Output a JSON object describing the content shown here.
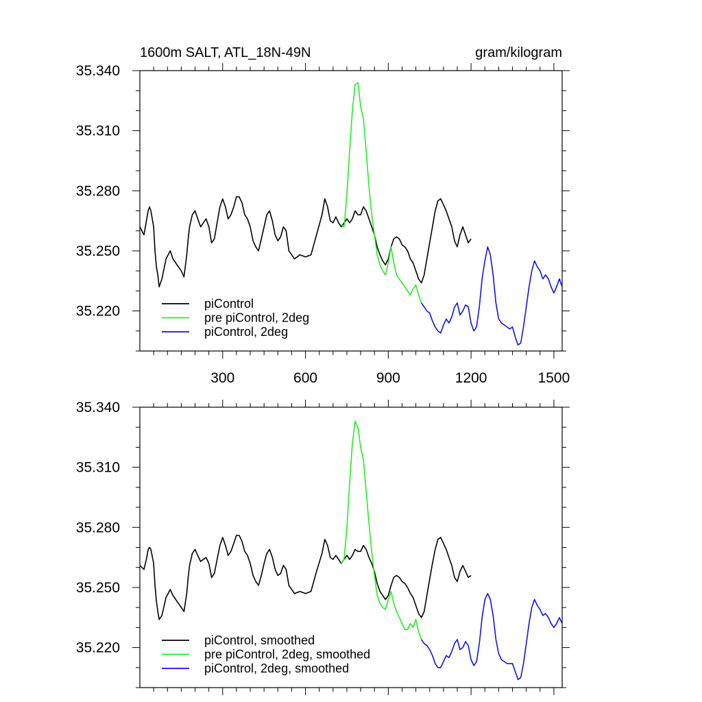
{
  "colors": {
    "black": "#000000",
    "green": "#22ee22",
    "blue": "#1111ee"
  },
  "chart_data": [
    {
      "type": "line",
      "title_left": "1600m SALT, ATL_18N-49N",
      "title_right": "gram/kilogram",
      "xlim": [
        0,
        1530
      ],
      "ylim": [
        35.2,
        35.34
      ],
      "yticks": [
        35.22,
        35.25,
        35.28,
        35.31,
        35.34
      ],
      "ytick_labels": [
        "35.220",
        "35.250",
        "35.280",
        "35.310",
        "35.340"
      ],
      "xticks": [
        300,
        600,
        900,
        1200,
        1500
      ],
      "xtick_labels": [
        "300",
        "600",
        "900",
        "1200",
        "1500"
      ],
      "show_xtick_labels": true,
      "legend_position": "bottom-left",
      "series": [
        {
          "name": "piControl",
          "color": "#000000",
          "x": [
            0,
            15,
            25,
            30,
            35,
            40,
            50,
            55,
            60,
            65,
            70,
            80,
            95,
            110,
            120,
            130,
            140,
            150,
            160,
            170,
            175,
            180,
            190,
            200,
            210,
            220,
            240,
            250,
            260,
            270,
            280,
            290,
            300,
            310,
            320,
            330,
            340,
            350,
            360,
            370,
            380,
            390,
            400,
            410,
            420,
            430,
            440,
            450,
            460,
            470,
            480,
            490,
            500,
            510,
            520,
            530,
            540,
            560,
            580,
            600,
            620,
            640,
            660,
            670,
            680,
            690,
            700,
            710,
            720,
            730,
            740,
            750,
            760,
            770,
            780,
            790,
            800,
            810,
            820,
            830,
            840,
            850,
            860,
            870,
            880,
            890,
            900,
            910,
            920,
            930,
            940,
            950,
            960,
            970,
            980,
            990,
            1000,
            1010,
            1020,
            1030,
            1040,
            1050,
            1060,
            1070,
            1080,
            1090,
            1100,
            1110,
            1120,
            1130,
            1140,
            1150,
            1160,
            1170,
            1180,
            1190,
            1200
          ],
          "y": [
            35.262,
            35.258,
            35.266,
            35.27,
            35.272,
            35.27,
            35.262,
            35.25,
            35.242,
            35.238,
            35.232,
            35.236,
            35.246,
            35.25,
            35.246,
            35.244,
            35.242,
            35.24,
            35.237,
            35.248,
            35.256,
            35.262,
            35.268,
            35.27,
            35.266,
            35.262,
            35.266,
            35.262,
            35.254,
            35.256,
            35.264,
            35.272,
            35.276,
            35.272,
            35.266,
            35.268,
            35.272,
            35.277,
            35.277,
            35.274,
            35.268,
            35.266,
            35.262,
            35.255,
            35.252,
            35.25,
            35.256,
            35.262,
            35.268,
            35.27,
            35.265,
            35.258,
            35.255,
            35.257,
            35.262,
            35.26,
            35.25,
            35.246,
            35.248,
            35.247,
            35.248,
            35.258,
            35.268,
            35.276,
            35.272,
            35.265,
            35.264,
            35.267,
            35.264,
            35.262,
            35.264,
            35.266,
            35.264,
            35.266,
            35.27,
            35.268,
            35.268,
            35.272,
            35.27,
            35.266,
            35.262,
            35.258,
            35.252,
            35.248,
            35.245,
            35.243,
            35.246,
            35.252,
            35.256,
            35.257,
            35.256,
            35.253,
            35.252,
            35.25,
            35.246,
            35.244,
            35.24,
            35.236,
            35.234,
            35.238,
            35.246,
            35.254,
            35.262,
            35.27,
            35.275,
            35.276,
            35.273,
            35.27,
            35.266,
            35.262,
            35.255,
            35.252,
            35.258,
            35.262,
            35.258,
            35.254,
            35.256
          ]
        },
        {
          "name": "pre piControl, 2deg",
          "color": "#22ee22",
          "x": [
            730,
            740,
            750,
            760,
            770,
            780,
            790,
            800,
            810,
            820,
            830,
            840,
            850,
            860,
            870,
            880,
            890,
            900,
            910,
            920,
            930,
            940,
            950,
            960,
            970,
            980,
            990,
            1000,
            1010,
            1020
          ],
          "y": [
            35.263,
            35.262,
            35.278,
            35.3,
            35.32,
            35.333,
            35.334,
            35.322,
            35.316,
            35.3,
            35.282,
            35.268,
            35.258,
            35.248,
            35.243,
            35.24,
            35.238,
            35.244,
            35.252,
            35.244,
            35.238,
            35.236,
            35.234,
            35.232,
            35.23,
            35.228,
            35.231,
            35.233,
            35.228,
            35.224
          ]
        },
        {
          "name": "piControl, 2deg",
          "color": "#1111ee",
          "x": [
            1020,
            1030,
            1040,
            1050,
            1060,
            1070,
            1080,
            1090,
            1100,
            1110,
            1120,
            1130,
            1140,
            1150,
            1160,
            1170,
            1180,
            1190,
            1200,
            1210,
            1220,
            1230,
            1240,
            1250,
            1260,
            1270,
            1280,
            1290,
            1300,
            1310,
            1320,
            1330,
            1340,
            1350,
            1360,
            1370,
            1380,
            1390,
            1400,
            1410,
            1420,
            1430,
            1440,
            1450,
            1460,
            1470,
            1480,
            1490,
            1500,
            1510,
            1520,
            1530
          ],
          "y": [
            35.224,
            35.222,
            35.22,
            35.219,
            35.215,
            35.212,
            35.21,
            35.209,
            35.213,
            35.216,
            35.214,
            35.217,
            35.222,
            35.224,
            35.218,
            35.22,
            35.223,
            35.222,
            35.214,
            35.21,
            35.212,
            35.222,
            35.236,
            35.245,
            35.252,
            35.248,
            35.238,
            35.224,
            35.216,
            35.214,
            35.213,
            35.212,
            35.211,
            35.212,
            35.207,
            35.203,
            35.204,
            35.212,
            35.222,
            35.232,
            35.24,
            35.245,
            35.242,
            35.24,
            35.236,
            35.238,
            35.236,
            35.232,
            35.229,
            35.232,
            35.236,
            35.232
          ]
        }
      ]
    },
    {
      "type": "line",
      "xlim": [
        0,
        1530
      ],
      "ylim": [
        35.2,
        35.34
      ],
      "yticks": [
        35.22,
        35.25,
        35.28,
        35.31,
        35.34
      ],
      "ytick_labels": [
        "35.220",
        "35.250",
        "35.280",
        "35.310",
        "35.340"
      ],
      "xticks": [
        300,
        600,
        900,
        1200,
        1500
      ],
      "show_xtick_labels": false,
      "legend_position": "bottom-left",
      "series": [
        {
          "name": "piControl, smoothed",
          "color": "#000000",
          "x": [
            0,
            15,
            25,
            30,
            35,
            40,
            50,
            55,
            60,
            65,
            70,
            80,
            95,
            110,
            120,
            130,
            140,
            150,
            160,
            170,
            175,
            180,
            190,
            200,
            210,
            220,
            240,
            250,
            260,
            270,
            280,
            290,
            300,
            310,
            320,
            330,
            340,
            350,
            360,
            370,
            380,
            390,
            400,
            410,
            420,
            430,
            440,
            450,
            460,
            470,
            480,
            490,
            500,
            510,
            520,
            530,
            540,
            560,
            580,
            600,
            620,
            640,
            660,
            670,
            680,
            690,
            700,
            710,
            720,
            730,
            740,
            750,
            760,
            770,
            780,
            790,
            800,
            810,
            820,
            830,
            840,
            850,
            860,
            870,
            880,
            890,
            900,
            910,
            920,
            930,
            940,
            950,
            960,
            970,
            980,
            990,
            1000,
            1010,
            1020,
            1030,
            1040,
            1050,
            1060,
            1070,
            1080,
            1090,
            1100,
            1110,
            1120,
            1130,
            1140,
            1150,
            1160,
            1170,
            1180,
            1190,
            1200
          ],
          "y": [
            35.261,
            35.259,
            35.265,
            35.269,
            35.27,
            35.269,
            35.262,
            35.251,
            35.243,
            35.238,
            35.234,
            35.236,
            35.245,
            35.249,
            35.246,
            35.244,
            35.242,
            35.24,
            35.238,
            35.247,
            35.255,
            35.261,
            35.267,
            35.269,
            35.266,
            35.263,
            35.265,
            35.262,
            35.255,
            35.257,
            35.264,
            35.271,
            35.275,
            35.271,
            35.266,
            35.268,
            35.272,
            35.276,
            35.276,
            35.273,
            35.268,
            35.266,
            35.262,
            35.256,
            35.253,
            35.251,
            35.256,
            35.262,
            35.267,
            35.269,
            35.265,
            35.259,
            35.256,
            35.257,
            35.261,
            35.259,
            35.251,
            35.247,
            35.248,
            35.247,
            35.248,
            35.258,
            35.267,
            35.274,
            35.271,
            35.265,
            35.264,
            35.266,
            35.264,
            35.262,
            35.264,
            35.266,
            35.264,
            35.266,
            35.269,
            35.268,
            35.268,
            35.271,
            35.269,
            35.265,
            35.262,
            35.258,
            35.252,
            35.248,
            35.246,
            35.244,
            35.246,
            35.251,
            35.255,
            35.256,
            35.255,
            35.253,
            35.252,
            35.25,
            35.247,
            35.245,
            35.241,
            35.237,
            35.235,
            35.238,
            35.246,
            35.254,
            35.262,
            35.269,
            35.274,
            35.275,
            35.272,
            35.269,
            35.265,
            35.261,
            35.255,
            35.253,
            35.258,
            35.261,
            35.258,
            35.255,
            35.256
          ]
        },
        {
          "name": "pre piControl, 2deg, smoothed",
          "color": "#22ee22",
          "x": [
            730,
            740,
            750,
            760,
            770,
            780,
            790,
            800,
            810,
            820,
            830,
            840,
            850,
            860,
            870,
            880,
            890,
            900,
            910,
            920,
            930,
            940,
            950,
            960,
            970,
            980,
            990,
            1000,
            1010,
            1020
          ],
          "y": [
            35.262,
            35.264,
            35.28,
            35.302,
            35.322,
            35.333,
            35.33,
            35.32,
            35.314,
            35.298,
            35.282,
            35.268,
            35.256,
            35.246,
            35.242,
            35.24,
            35.239,
            35.244,
            35.248,
            35.242,
            35.238,
            35.235,
            35.232,
            35.229,
            35.229,
            35.232,
            35.23,
            35.234,
            35.228,
            35.224
          ]
        },
        {
          "name": "piControl, 2deg, smoothed",
          "color": "#1111ee",
          "x": [
            1020,
            1030,
            1040,
            1050,
            1060,
            1070,
            1080,
            1090,
            1100,
            1110,
            1120,
            1130,
            1140,
            1150,
            1160,
            1170,
            1180,
            1190,
            1200,
            1210,
            1220,
            1230,
            1240,
            1250,
            1260,
            1270,
            1280,
            1290,
            1300,
            1310,
            1320,
            1330,
            1340,
            1350,
            1360,
            1370,
            1380,
            1390,
            1400,
            1410,
            1420,
            1430,
            1440,
            1450,
            1460,
            1470,
            1480,
            1490,
            1500,
            1510,
            1520,
            1530
          ],
          "y": [
            35.224,
            35.222,
            35.221,
            35.219,
            35.216,
            35.212,
            35.21,
            35.21,
            35.213,
            35.216,
            35.215,
            35.218,
            35.222,
            35.224,
            35.219,
            35.22,
            35.223,
            35.221,
            35.214,
            35.211,
            35.213,
            35.222,
            35.235,
            35.244,
            35.247,
            35.244,
            35.236,
            35.224,
            35.217,
            35.214,
            35.213,
            35.212,
            35.212,
            35.212,
            35.208,
            35.204,
            35.205,
            35.212,
            35.222,
            35.232,
            35.24,
            35.244,
            35.241,
            35.239,
            35.236,
            35.237,
            35.235,
            35.232,
            35.23,
            35.232,
            35.235,
            35.232
          ]
        }
      ]
    }
  ]
}
